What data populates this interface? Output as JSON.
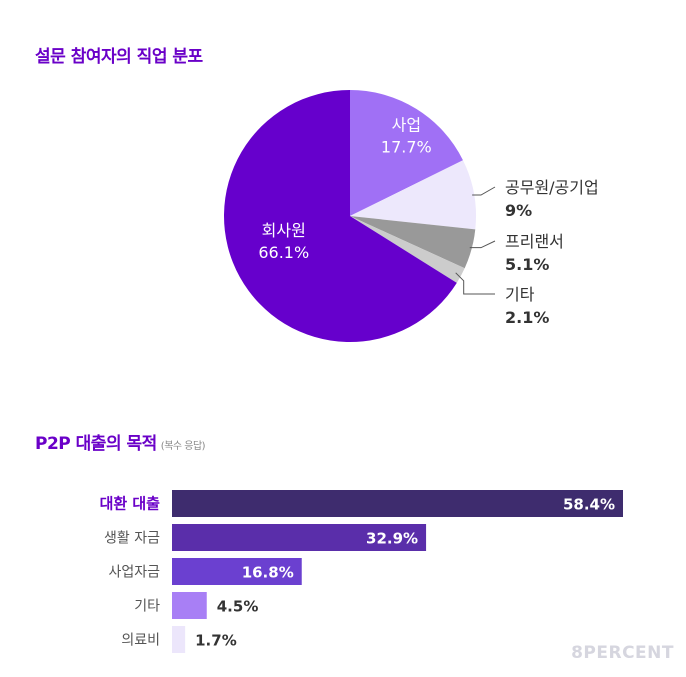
{
  "chart_data": [
    {
      "type": "pie",
      "title": "설문 참여자의 직업 분포",
      "slices": [
        {
          "label": "사업",
          "value": 17.7,
          "value_text": "17.7%",
          "color": "#a070f5",
          "label_pos": "inside"
        },
        {
          "label": "공무원/공기업",
          "value": 9.0,
          "value_text": "9%",
          "color": "#ede8fc",
          "label_pos": "outside"
        },
        {
          "label": "프리랜서",
          "value": 5.1,
          "value_text": "5.1%",
          "color": "#999999",
          "label_pos": "outside"
        },
        {
          "label": "기타",
          "value": 2.1,
          "value_text": "2.1%",
          "color": "#cccccc",
          "label_pos": "outside"
        },
        {
          "label": "회사원",
          "value": 66.1,
          "value_text": "66.1%",
          "color": "#6600cc",
          "label_pos": "inside"
        }
      ]
    },
    {
      "type": "bar",
      "orientation": "horizontal",
      "title": "P2P 대출의 목적",
      "subtitle": "(복수 응답)",
      "categories": [
        "대환 대출",
        "생활 자금",
        "사업자금",
        "기타",
        "의료비"
      ],
      "values": [
        58.4,
        32.9,
        16.8,
        4.5,
        1.7
      ],
      "value_labels": [
        "58.4%",
        "32.9%",
        "16.8%",
        "4.5%",
        "1.7%"
      ],
      "colors": [
        "#3e2c6e",
        "#5a2eaa",
        "#6b40d0",
        "#a87ff5",
        "#ece6fb"
      ],
      "highlight_index": 0
    }
  ],
  "brand": "8PERCENT"
}
